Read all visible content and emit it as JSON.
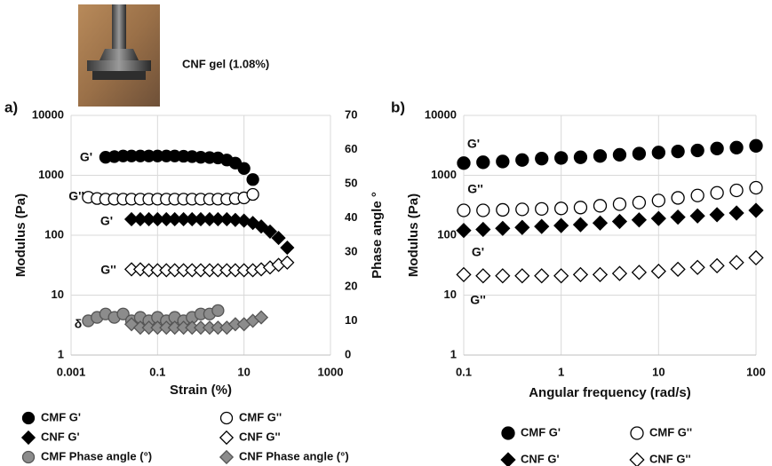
{
  "photo_caption": "CNF gel (1.08%)",
  "chart_data": [
    {
      "type": "scatter",
      "panel_label": "a)",
      "xlabel": "Strain (%)",
      "ylabel": "Modulus  (Pa)",
      "y2label": "Phase angle °",
      "xscale": "log",
      "yscale": "log",
      "grid": true,
      "xlim": [
        0.001,
        1000
      ],
      "xticks": [
        0.001,
        0.1,
        10,
        1000
      ],
      "ylim": [
        1,
        10000
      ],
      "yticks": [
        1,
        10,
        100,
        1000,
        10000
      ],
      "y2lim": [
        0,
        70
      ],
      "y2ticks": [
        0,
        10,
        20,
        30,
        40,
        50,
        60,
        70
      ],
      "annotations": [
        "G'",
        "G''",
        "G'",
        "G''",
        "δ"
      ],
      "series": [
        {
          "name": "CMF G'",
          "marker": "circle",
          "color": "#000000",
          "edgecolor": "#000000",
          "x": [
            0.0063,
            0.01,
            0.016,
            0.025,
            0.04,
            0.063,
            0.1,
            0.16,
            0.25,
            0.4,
            0.63,
            1,
            1.6,
            2.5,
            4,
            6.3,
            10,
            16
          ],
          "values": [
            2000,
            2050,
            2100,
            2100,
            2100,
            2100,
            2100,
            2100,
            2100,
            2080,
            2050,
            2000,
            1980,
            1950,
            1800,
            1600,
            1300,
            850
          ]
        },
        {
          "name": "CMF G''",
          "marker": "circle",
          "color": "#ffffff",
          "edgecolor": "#000000",
          "x": [
            0.0025,
            0.004,
            0.0063,
            0.01,
            0.016,
            0.025,
            0.04,
            0.063,
            0.1,
            0.16,
            0.25,
            0.4,
            0.63,
            1,
            1.6,
            2.5,
            4,
            6.3,
            10,
            16
          ],
          "values": [
            430,
            410,
            400,
            400,
            400,
            400,
            400,
            400,
            400,
            400,
            400,
            400,
            400,
            400,
            400,
            400,
            400,
            410,
            420,
            480
          ]
        },
        {
          "name": "CNF G'",
          "marker": "diamond",
          "color": "#000000",
          "edgecolor": "#000000",
          "x": [
            0.025,
            0.04,
            0.063,
            0.1,
            0.16,
            0.25,
            0.4,
            0.63,
            1,
            1.6,
            2.5,
            4,
            6.3,
            10,
            16,
            25,
            40,
            63,
            100
          ],
          "values": [
            185,
            185,
            185,
            185,
            185,
            185,
            185,
            185,
            185,
            185,
            185,
            185,
            180,
            175,
            160,
            140,
            115,
            90,
            62
          ]
        },
        {
          "name": "CNF G''",
          "marker": "diamond",
          "color": "#ffffff",
          "edgecolor": "#000000",
          "x": [
            0.025,
            0.04,
            0.063,
            0.1,
            0.16,
            0.25,
            0.4,
            0.63,
            1,
            1.6,
            2.5,
            4,
            6.3,
            10,
            16,
            25,
            40,
            63,
            100
          ],
          "values": [
            27,
            27,
            26,
            26,
            26,
            26,
            26,
            26,
            26,
            26,
            26,
            26,
            26,
            26,
            26,
            27,
            29,
            32,
            35
          ]
        },
        {
          "name": "CMF Phase angle (°)",
          "marker": "circle",
          "color": "#8c8c8c",
          "edgecolor": "#555555",
          "axis": "y2",
          "x": [
            0.0025,
            0.004,
            0.0063,
            0.01,
            0.016,
            0.025,
            0.04,
            0.063,
            0.1,
            0.16,
            0.25,
            0.4,
            0.63,
            1,
            1.6,
            2.5
          ],
          "values": [
            10,
            11,
            12,
            11,
            12,
            10,
            11,
            10,
            11,
            10,
            11,
            10,
            11,
            12,
            12,
            13
          ]
        },
        {
          "name": "CNF Phase angle (°)",
          "marker": "diamond",
          "color": "#8c8c8c",
          "edgecolor": "#555555",
          "axis": "y2",
          "x": [
            0.025,
            0.04,
            0.063,
            0.1,
            0.16,
            0.25,
            0.4,
            0.63,
            1,
            1.6,
            2.5,
            4,
            6.3,
            10,
            16,
            25
          ],
          "values": [
            9,
            8,
            8,
            8,
            8,
            8,
            8,
            8,
            8,
            8,
            8,
            8,
            9,
            9,
            10,
            11
          ]
        }
      ]
    },
    {
      "type": "scatter",
      "panel_label": "b)",
      "xlabel": "Angular frequency (rad/s)",
      "ylabel": "Modulus (Pa)",
      "xscale": "log",
      "yscale": "log",
      "grid": true,
      "xlim": [
        0.1,
        100
      ],
      "xticks": [
        0.1,
        1,
        10,
        100
      ],
      "ylim": [
        1,
        10000
      ],
      "yticks": [
        1,
        10,
        100,
        1000,
        10000
      ],
      "annotations": [
        "G'",
        "G''",
        "G'",
        "G''"
      ],
      "series": [
        {
          "name": "CMF G'",
          "marker": "circle",
          "color": "#000000",
          "edgecolor": "#000000",
          "x": [
            0.1,
            0.158,
            0.251,
            0.398,
            0.631,
            1,
            1.58,
            2.51,
            3.98,
            6.31,
            10,
            15.8,
            25.1,
            39.8,
            63.1,
            100
          ],
          "values": [
            1600,
            1650,
            1700,
            1800,
            1900,
            1950,
            2000,
            2100,
            2200,
            2300,
            2400,
            2500,
            2600,
            2800,
            2900,
            3100
          ]
        },
        {
          "name": "CMF G''",
          "marker": "circle",
          "color": "#ffffff",
          "edgecolor": "#000000",
          "x": [
            0.1,
            0.158,
            0.251,
            0.398,
            0.631,
            1,
            1.58,
            2.51,
            3.98,
            6.31,
            10,
            15.8,
            25.1,
            39.8,
            63.1,
            100
          ],
          "values": [
            260,
            260,
            265,
            270,
            275,
            280,
            290,
            310,
            330,
            350,
            380,
            420,
            460,
            510,
            560,
            620
          ]
        },
        {
          "name": "CNF G'",
          "marker": "diamond",
          "color": "#000000",
          "edgecolor": "#000000",
          "x": [
            0.1,
            0.158,
            0.251,
            0.398,
            0.631,
            1,
            1.58,
            2.51,
            3.98,
            6.31,
            10,
            15.8,
            25.1,
            39.8,
            63.1,
            100
          ],
          "values": [
            120,
            125,
            130,
            135,
            140,
            145,
            150,
            160,
            170,
            180,
            190,
            200,
            210,
            220,
            235,
            260
          ]
        },
        {
          "name": "CNF G''",
          "marker": "diamond",
          "color": "#ffffff",
          "edgecolor": "#000000",
          "x": [
            0.1,
            0.158,
            0.251,
            0.398,
            0.631,
            1,
            1.58,
            2.51,
            3.98,
            6.31,
            10,
            15.8,
            25.1,
            39.8,
            63.1,
            100
          ],
          "values": [
            22,
            21,
            21,
            21,
            21,
            21,
            22,
            22,
            23,
            24,
            25,
            27,
            29,
            31,
            35,
            42
          ]
        }
      ]
    }
  ]
}
